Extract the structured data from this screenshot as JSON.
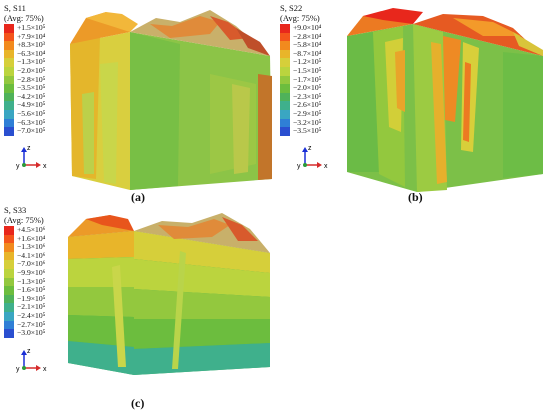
{
  "panels": [
    {
      "id": "a",
      "variable": "S, S11",
      "averaging": "(Avg: 75%)",
      "values": [
        "+1.5×10⁵",
        "+7.9×10⁴",
        "+8.3×10³",
        "−6.3×10⁴",
        "−1.3×10⁵",
        "−2.0×10⁵",
        "−2.8×10⁵",
        "−3.5×10⁵",
        "−4.2×10⁵",
        "−4.9×10⁵",
        "−5.6×10⁵",
        "−6.3×10⁵",
        "−7.0×10⁵"
      ],
      "caption": "(a)"
    },
    {
      "id": "b",
      "variable": "S, S22",
      "averaging": "(Avg: 75%)",
      "values": [
        "+9.0×10⁴",
        "−2.8×10⁴",
        "−5.8×10⁴",
        "−8.7×10⁴",
        "−1.2×10⁵",
        "−1.5×10⁵",
        "−1.7×10⁵",
        "−2.0×10⁵",
        "−2.3×10⁵",
        "−2.6×10⁵",
        "−2.9×10⁵",
        "−3.2×10⁵",
        "−3.5×10⁵"
      ],
      "caption": "(b)"
    },
    {
      "id": "c",
      "variable": "S, S33",
      "averaging": "(Avg: 75%)",
      "values": [
        "+4.5×10⁶",
        "+1.6×10⁴",
        "−1.3×10⁶",
        "−4.1×10⁶",
        "−7.0×10⁶",
        "−9.9×10⁶",
        "−1.3×10⁵",
        "−1.6×10⁵",
        "−1.9×10⁵",
        "−2.1×10⁵",
        "−2.4×10⁵",
        "−2.7×10⁵",
        "−3.0×10⁵"
      ],
      "caption": "(c)"
    }
  ],
  "axis_labels": {
    "x": "x",
    "y": "y",
    "z": "z"
  },
  "colormap": [
    "#e8271c",
    "#f4551c",
    "#f28a1e",
    "#e8b52a",
    "#d6cf3a",
    "#bbd43e",
    "#93c83e",
    "#6cbd3e",
    "#4fb25a",
    "#3fb08c",
    "#3aa6c2",
    "#2f7fd6",
    "#2a4fd0"
  ]
}
